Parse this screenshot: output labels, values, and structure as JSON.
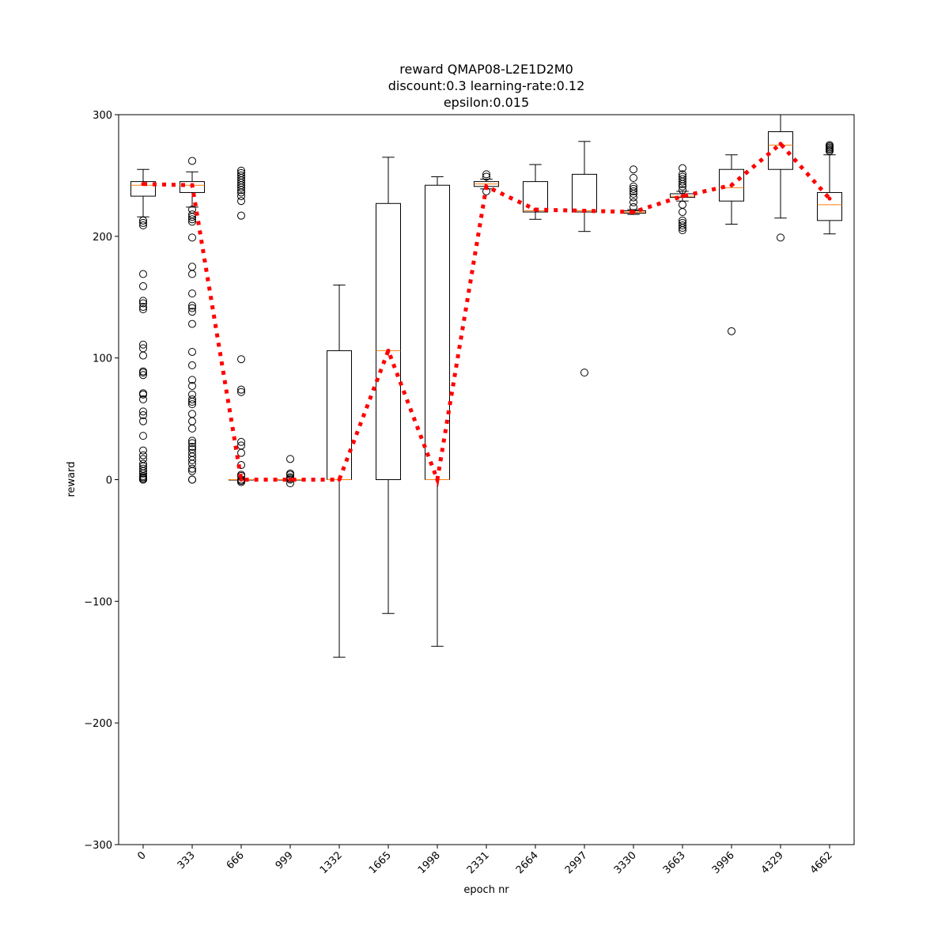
{
  "chart_data": {
    "type": "box",
    "title_lines": [
      "reward QMAP08-L2E1D2M0",
      "discount:0.3 learning-rate:0.12",
      "epsilon:0.015"
    ],
    "xlabel": "epoch nr",
    "ylabel": "reward",
    "ylim": [
      -300,
      300
    ],
    "yticks": [
      -300,
      -200,
      -100,
      0,
      100,
      200,
      300
    ],
    "categories": [
      "0",
      "333",
      "666",
      "999",
      "1332",
      "1665",
      "1998",
      "2331",
      "2664",
      "2997",
      "3330",
      "3663",
      "3996",
      "4329",
      "4662"
    ],
    "boxes": [
      {
        "whislo": 216,
        "q1": 233,
        "med": 242,
        "q3": 245,
        "whishi": 255,
        "fliers": [
          0,
          0,
          1,
          2,
          3,
          5,
          7,
          9,
          11,
          13,
          17,
          20,
          24,
          36,
          48,
          53,
          56,
          66,
          70,
          71,
          86,
          88,
          89,
          102,
          108,
          111,
          140,
          142,
          145,
          147,
          159,
          169,
          209,
          211,
          213
        ]
      },
      {
        "whislo": 224,
        "q1": 236,
        "med": 242,
        "q3": 245,
        "whishi": 253,
        "fliers": [
          0,
          0,
          7,
          9,
          13,
          16,
          19,
          22,
          25,
          27,
          30,
          32,
          42,
          48,
          54,
          62,
          64,
          66,
          70,
          77,
          82,
          94,
          105,
          128,
          138,
          141,
          143,
          153,
          169,
          175,
          199,
          212,
          214,
          216,
          218,
          222,
          262
        ]
      },
      {
        "whislo": 0,
        "q1": 0,
        "med": 0,
        "q3": 0,
        "whishi": 0,
        "fliers": [
          -2,
          -1,
          0,
          0,
          3,
          4,
          12,
          22,
          28,
          31,
          72,
          74,
          99,
          217,
          229,
          233,
          236,
          238,
          240,
          242,
          244,
          246,
          248,
          250,
          252,
          254
        ]
      },
      {
        "whislo": 0,
        "q1": 0,
        "med": 0,
        "q3": 0,
        "whishi": 0,
        "fliers": [
          -3,
          0,
          1,
          2,
          4,
          5,
          17
        ]
      },
      {
        "whislo": -146,
        "q1": 0,
        "med": 0,
        "q3": 106,
        "whishi": 160,
        "fliers": []
      },
      {
        "whislo": -110,
        "q1": 0,
        "med": 106,
        "q3": 227,
        "whishi": 265,
        "fliers": []
      },
      {
        "whislo": -137,
        "q1": 0,
        "med": 0,
        "q3": 242,
        "whishi": 249,
        "fliers": []
      },
      {
        "whislo": 239,
        "q1": 241,
        "med": 243,
        "q3": 245,
        "whishi": 247,
        "fliers": [
          237,
          249,
          251
        ]
      },
      {
        "whislo": 214,
        "q1": 220,
        "med": 221,
        "q3": 245,
        "whishi": 259,
        "fliers": []
      },
      {
        "whislo": 204,
        "q1": 220,
        "med": 221,
        "q3": 251,
        "whishi": 278,
        "fliers": [
          88
        ]
      },
      {
        "whislo": 218,
        "q1": 219,
        "med": 220,
        "q3": 221,
        "whishi": 222,
        "fliers": [
          224,
          228,
          232,
          235,
          237,
          239,
          241,
          248,
          255
        ]
      },
      {
        "whislo": 229,
        "q1": 232,
        "med": 233,
        "q3": 235,
        "whishi": 237,
        "fliers": [
          205,
          207,
          209,
          211,
          213,
          220,
          226,
          238,
          241,
          243,
          245,
          247,
          249,
          251,
          256
        ]
      },
      {
        "whislo": 210,
        "q1": 229,
        "med": 240,
        "q3": 255,
        "whishi": 267,
        "fliers": [
          122
        ]
      },
      {
        "whislo": 215,
        "q1": 255,
        "med": 275,
        "q3": 286,
        "whishi": 300,
        "fliers": [
          199
        ]
      },
      {
        "whislo": 202,
        "q1": 213,
        "med": 226,
        "q3": 236,
        "whishi": 267,
        "fliers": [
          270,
          271,
          272,
          273,
          274,
          275
        ]
      }
    ],
    "mean_line": {
      "style": "dotted",
      "values": [
        243,
        242,
        0,
        0,
        0,
        106,
        0,
        241,
        222,
        221,
        220,
        233,
        242,
        276,
        231
      ]
    },
    "colors": {
      "mean_line": "#ff0000",
      "median": "#ff7f0e",
      "box": "#000000"
    }
  }
}
